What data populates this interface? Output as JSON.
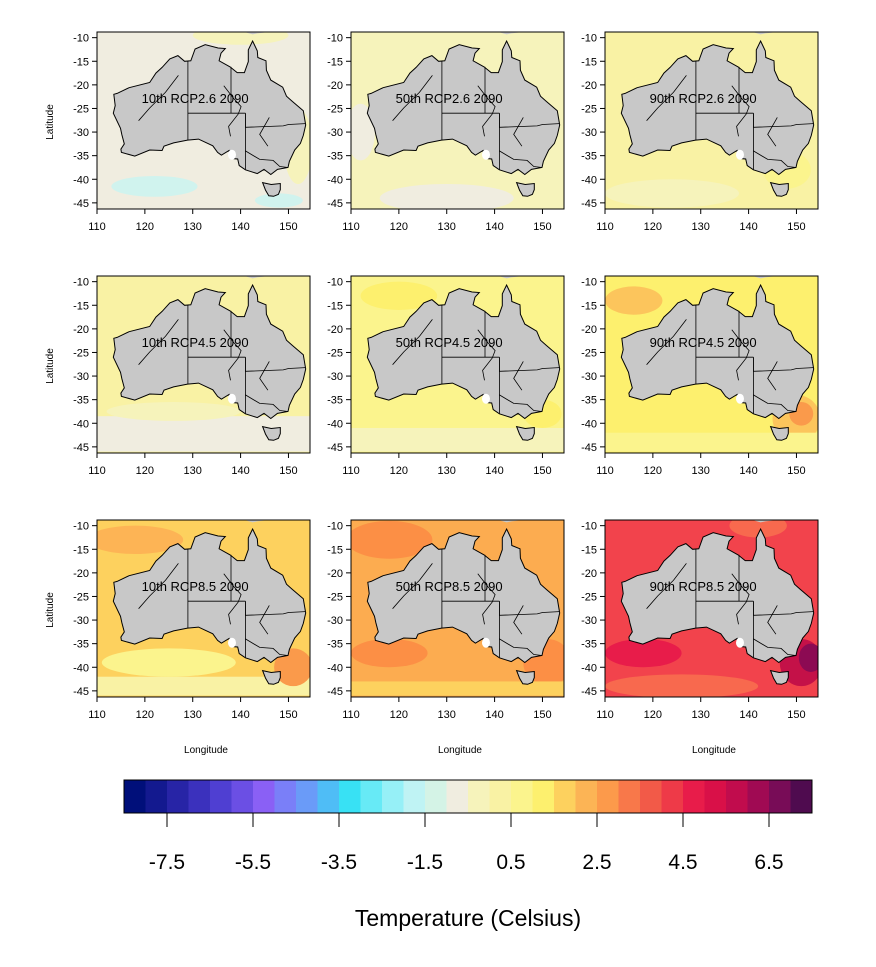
{
  "axes": {
    "latitude_label": "Latitude",
    "longitude_label": "Longitude",
    "x_ticks": [
      "110",
      "120",
      "130",
      "140",
      "150"
    ],
    "y_ticks": [
      "-10",
      "-15",
      "-20",
      "-25",
      "-30",
      "-35",
      "-40",
      "-45"
    ]
  },
  "panels": [
    {
      "label": "10th RCP2.6 2090",
      "ocean": "#f0ede0",
      "patches": [
        {
          "shape": "blob",
          "color": "#d0f3ee",
          "lon": 122,
          "lat": -41.5,
          "rlon": 9,
          "rlat": 2.2
        },
        {
          "shape": "blob",
          "color": "#d0f3ee",
          "lon": 148,
          "lat": -44.5,
          "rlon": 5,
          "rlat": 1.5
        },
        {
          "shape": "blob",
          "color": "#f6f3bb",
          "lon": 152,
          "lat": -33,
          "rlon": 3,
          "rlat": 8
        },
        {
          "shape": "blob",
          "color": "#f6f3bb",
          "lon": 140,
          "lat": -9.5,
          "rlon": 10,
          "rlat": 2
        }
      ]
    },
    {
      "label": "50th RCP2.6 2090",
      "ocean": "#f6f3bb",
      "patches": [
        {
          "shape": "blob",
          "color": "#f0ede0",
          "lon": 130,
          "lat": -44,
          "rlon": 14,
          "rlat": 3
        },
        {
          "shape": "blob",
          "color": "#f0ede0",
          "lon": 112,
          "lat": -30,
          "rlon": 3,
          "rlat": 6
        }
      ]
    },
    {
      "label": "90th RCP2.6 2090",
      "ocean": "#f9f2a4",
      "patches": [
        {
          "shape": "blob",
          "color": "#f6f3bb",
          "lon": 124,
          "lat": -43,
          "rlon": 14,
          "rlat": 3
        },
        {
          "shape": "blob",
          "color": "#fbf48d",
          "lon": 148,
          "lat": -38,
          "rlon": 5,
          "rlat": 4
        }
      ]
    },
    {
      "label": "10th RCP4.5 2090",
      "ocean": "#f9f2a4",
      "patches": [
        {
          "shape": "band",
          "color": "#f0ede0",
          "lat_min": -46,
          "lat_max": -38.5
        },
        {
          "shape": "blob",
          "color": "#f6f3bb",
          "lon": 126,
          "lat": -37.5,
          "rlon": 14,
          "rlat": 2
        }
      ]
    },
    {
      "label": "50th RCP4.5 2090",
      "ocean": "#fbf48d",
      "patches": [
        {
          "shape": "band",
          "color": "#f6f3bb",
          "lat_min": -46,
          "lat_max": -41
        },
        {
          "shape": "blob",
          "color": "#fdf06e",
          "lon": 120,
          "lat": -13,
          "rlon": 8,
          "rlat": 3
        },
        {
          "shape": "blob",
          "color": "#fdf06e",
          "lon": 150,
          "lat": -38,
          "rlon": 4,
          "rlat": 3
        }
      ]
    },
    {
      "label": "90th RCP4.5 2090",
      "ocean": "#fdf06e",
      "patches": [
        {
          "shape": "blob",
          "color": "#fcc55c",
          "lon": 116,
          "lat": -14,
          "rlon": 6,
          "rlat": 3
        },
        {
          "shape": "blob",
          "color": "#fcc55c",
          "lon": 150,
          "lat": -39,
          "rlon": 5,
          "rlat": 5
        },
        {
          "shape": "blob",
          "color": "#fa9a4b",
          "lon": 151,
          "lat": -38,
          "rlon": 2.5,
          "rlat": 2.5
        },
        {
          "shape": "band",
          "color": "#fbf48d",
          "lat_min": -46,
          "lat_max": -42
        }
      ]
    },
    {
      "label": "10th RCP8.5 2090",
      "ocean": "#fdd15e",
      "patches": [
        {
          "shape": "band",
          "color": "#f9f2a4",
          "lat_min": -46,
          "lat_max": -42
        },
        {
          "shape": "blob",
          "color": "#fbf48d",
          "lon": 125,
          "lat": -39,
          "rlon": 14,
          "rlat": 3
        },
        {
          "shape": "blob",
          "color": "#fdb455",
          "lon": 118,
          "lat": -13,
          "rlon": 10,
          "rlat": 3
        },
        {
          "shape": "blob",
          "color": "#fa9a4b",
          "lon": 151,
          "lat": -40,
          "rlon": 4,
          "rlat": 4
        }
      ]
    },
    {
      "label": "50th RCP8.5 2090",
      "ocean": "#fcac50",
      "patches": [
        {
          "shape": "blob",
          "color": "#fc8f45",
          "lon": 118,
          "lat": -13,
          "rlon": 9,
          "rlat": 4
        },
        {
          "shape": "blob",
          "color": "#fc8f45",
          "lon": 118,
          "lat": -37,
          "rlon": 8,
          "rlat": 3
        },
        {
          "shape": "blob",
          "color": "#fc8f45",
          "lon": 151,
          "lat": -39,
          "rlon": 5,
          "rlat": 5
        },
        {
          "shape": "band",
          "color": "#fdd15e",
          "lat_min": -46,
          "lat_max": -43
        }
      ]
    },
    {
      "label": "90th RCP8.5 2090",
      "ocean": "#f2434c",
      "patches": [
        {
          "shape": "blob",
          "color": "#f8694e",
          "lon": 126,
          "lat": -44,
          "rlon": 16,
          "rlat": 2.5
        },
        {
          "shape": "blob",
          "color": "#f8694e",
          "lon": 142,
          "lat": -10,
          "rlon": 6,
          "rlat": 2.5
        },
        {
          "shape": "blob",
          "color": "#e81c4a",
          "lon": 118,
          "lat": -37,
          "rlon": 8,
          "rlat": 3
        },
        {
          "shape": "blob",
          "color": "#c41148",
          "lon": 151,
          "lat": -39,
          "rlon": 4.5,
          "rlat": 5
        },
        {
          "shape": "blob",
          "color": "#8c0a53",
          "lon": 153,
          "lat": -38,
          "rlon": 2.5,
          "rlat": 3
        }
      ]
    }
  ],
  "colorbar": {
    "title": "Temperature (Celsius)",
    "tick_labels": [
      "-7.5",
      "-5.5",
      "-3.5",
      "-1.5",
      "0.5",
      "2.5",
      "4.5",
      "6.5"
    ],
    "min": -8.5,
    "max": 7.5,
    "colors": [
      "#000f7a",
      "#13198f",
      "#2724a6",
      "#3b31bd",
      "#4f3fd2",
      "#6b4fe4",
      "#8a60f5",
      "#7a7ff8",
      "#6a9bf8",
      "#4fbdf6",
      "#38e1f4",
      "#67eaf6",
      "#96f0f7",
      "#bff3f4",
      "#d4f3e6",
      "#f0ede0",
      "#f6f3bb",
      "#f9f2a4",
      "#fbf48d",
      "#fdf06e",
      "#fdd15e",
      "#fcb455",
      "#fc9a4b",
      "#f8784a",
      "#f25a48",
      "#ee3a48",
      "#e81c4a",
      "#d91048",
      "#c10c4d",
      "#a00a53",
      "#780c57",
      "#4f0b4f"
    ]
  }
}
